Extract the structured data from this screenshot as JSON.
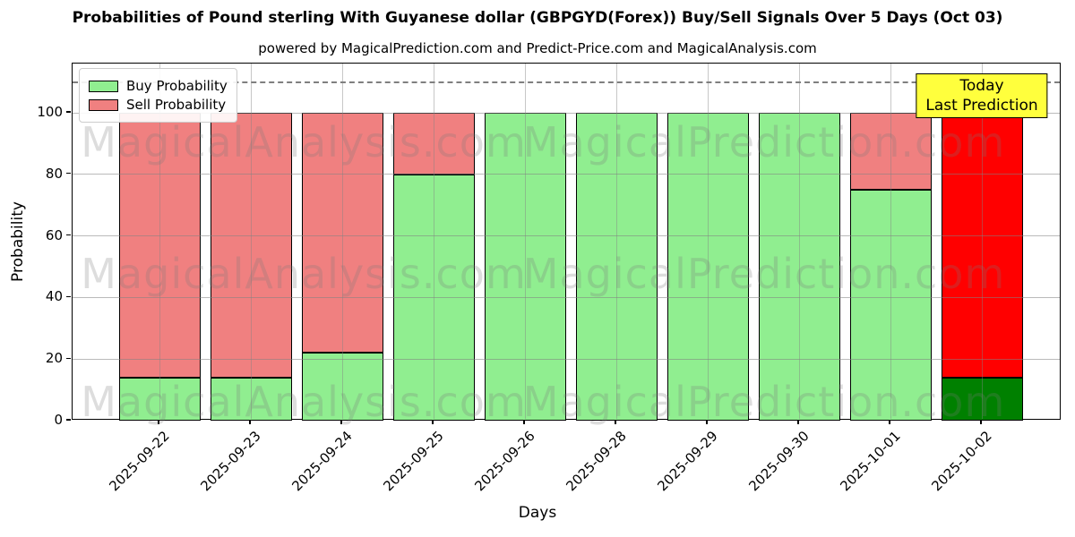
{
  "header": {
    "title": "Probabilities of Pound sterling With Guyanese dollar (GBPGYD(Forex)) Buy/Sell Signals Over 5 Days (Oct 03)",
    "subtitle": "powered by MagicalPrediction.com and Predict-Price.com and MagicalAnalysis.com"
  },
  "chart_data": {
    "type": "bar",
    "stacked": true,
    "title": "Probabilities of Pound sterling With Guyanese dollar (GBPGYD(Forex)) Buy/Sell Signals Over 5 Days (Oct 03)",
    "xlabel": "Days",
    "ylabel": "Probability",
    "categories": [
      "2025-09-22",
      "2025-09-23",
      "2025-09-24",
      "2025-09-25",
      "2025-09-26",
      "2025-09-28",
      "2025-09-29",
      "2025-09-30",
      "2025-10-01",
      "2025-10-02"
    ],
    "series": [
      {
        "name": "Buy Probability",
        "color": "#90EE90",
        "values": [
          14,
          14,
          22,
          80,
          100,
          100,
          100,
          100,
          75,
          14
        ]
      },
      {
        "name": "Sell Probability",
        "color": "#F08080",
        "values": [
          86,
          86,
          78,
          20,
          0,
          0,
          0,
          0,
          25,
          86
        ]
      }
    ],
    "today_bar": {
      "index": 9,
      "buy_color": "#008000",
      "sell_color": "#FF0000"
    },
    "yticks": [
      0,
      20,
      40,
      60,
      80,
      100
    ],
    "ylim": [
      0,
      116
    ],
    "threshold_line_y": 110,
    "grid": true,
    "legend_position": "upper left",
    "legend": [
      "Buy Probability",
      "Sell Probability"
    ]
  },
  "annotation": {
    "line1": "Today",
    "line2": "Last Prediction",
    "bg_color": "#FFFF3D"
  },
  "watermarks": {
    "left_text": "MagicalAnalysis.com",
    "right_text": "MagicalPrediction.com"
  },
  "colors": {
    "buy": "#90EE90",
    "sell": "#F08080",
    "today_buy": "#008000",
    "today_sell": "#FF0000",
    "annotation_bg": "#FFFF3D",
    "grid": "#b0b0b0",
    "threshold": "#7f7f7f"
  }
}
